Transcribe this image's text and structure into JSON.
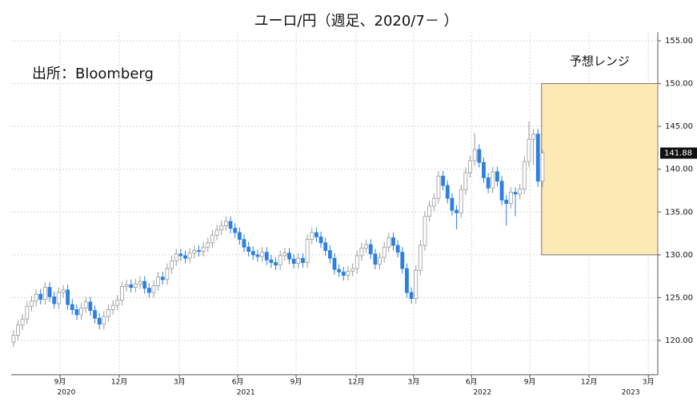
{
  "chart_data": {
    "type": "candlestick",
    "title": "ユーロ/円（週足、2020/7－ ）",
    "source": "出所：Bloomberg",
    "up_color": "#ffffff",
    "up_stroke": "#9a9a9a",
    "down_color": "#2d7fe0",
    "open": [
      119.8,
      120.6,
      121.8,
      122.5,
      124.0,
      124.6,
      125.4,
      124.8,
      126.2,
      125.1,
      124.3,
      125.6,
      125.9,
      124.2,
      123.6,
      123.0,
      123.8,
      124.5,
      123.5,
      122.6,
      121.9,
      122.8,
      123.6,
      124.1,
      124.7,
      126.3,
      126.5,
      126.2,
      126.6,
      126.9,
      126.1,
      125.6,
      126.4,
      127.4,
      127.1,
      128.4,
      129.3,
      130.1,
      129.9,
      129.6,
      130.2,
      130.5,
      130.4,
      130.9,
      131.4,
      132.3,
      132.9,
      133.4,
      133.9,
      133.1,
      132.6,
      131.8,
      130.9,
      130.4,
      130.0,
      129.8,
      130.3,
      129.4,
      129.1,
      128.8,
      129.9,
      130.2,
      129.5,
      129.0,
      129.6,
      129.1,
      131.8,
      132.6,
      132.1,
      131.4,
      130.5,
      129.6,
      128.3,
      128.0,
      127.6,
      128.1,
      128.4,
      129.9,
      130.8,
      131.2,
      130.1,
      128.9,
      129.7,
      130.9,
      132.0,
      131.1,
      130.3,
      128.4,
      125.6,
      124.9,
      128.2,
      131.1,
      134.5,
      135.7,
      136.6,
      139.2,
      138.1,
      136.6,
      135.2,
      134.9,
      137.6,
      139.6,
      141.0,
      142.3,
      140.8,
      139.0,
      137.8,
      139.7,
      138.6,
      136.4,
      136.0,
      137.3,
      137.1,
      137.7,
      140.9,
      143.5,
      144.1,
      138.6
    ],
    "high": [
      121.2,
      122.4,
      123.1,
      124.6,
      125.2,
      126.0,
      126.0,
      126.8,
      126.8,
      125.7,
      126.2,
      126.5,
      126.5,
      124.8,
      124.2,
      124.4,
      125.1,
      125.1,
      124.1,
      123.2,
      123.4,
      124.2,
      124.7,
      125.3,
      126.9,
      127.1,
      127.1,
      127.2,
      127.5,
      127.5,
      126.7,
      127.0,
      128.0,
      128.0,
      129.0,
      129.9,
      130.7,
      130.7,
      130.5,
      130.8,
      131.1,
      131.1,
      131.5,
      132.0,
      132.9,
      133.5,
      134.0,
      134.5,
      134.5,
      133.7,
      133.2,
      132.4,
      131.5,
      131.0,
      130.6,
      130.9,
      130.9,
      130.0,
      129.7,
      130.5,
      130.8,
      130.8,
      130.1,
      130.2,
      130.2,
      132.4,
      133.2,
      133.2,
      132.7,
      132.0,
      131.1,
      130.2,
      128.9,
      128.6,
      128.7,
      129.0,
      130.5,
      131.4,
      131.8,
      131.8,
      130.7,
      130.3,
      131.5,
      132.6,
      132.6,
      131.7,
      130.9,
      129.0,
      126.2,
      128.8,
      131.7,
      135.1,
      136.3,
      137.2,
      139.8,
      139.8,
      138.7,
      137.2,
      135.8,
      138.2,
      140.2,
      141.6,
      144.2,
      142.9,
      141.4,
      139.6,
      140.3,
      140.3,
      139.2,
      137.0,
      137.9,
      137.9,
      138.3,
      141.5,
      145.6,
      144.7,
      144.7,
      142.3
    ],
    "low": [
      119.2,
      120.0,
      121.2,
      121.9,
      123.4,
      124.0,
      124.2,
      124.2,
      124.5,
      123.7,
      123.7,
      125.0,
      123.6,
      123.0,
      122.4,
      122.4,
      123.2,
      122.9,
      122.0,
      121.3,
      121.3,
      122.2,
      123.0,
      123.5,
      124.1,
      125.7,
      125.6,
      125.6,
      126.0,
      125.5,
      125.0,
      125.0,
      125.8,
      126.5,
      126.5,
      127.8,
      128.7,
      129.3,
      129.0,
      129.0,
      129.6,
      129.8,
      129.8,
      130.3,
      130.8,
      131.7,
      132.3,
      132.8,
      132.5,
      132.0,
      131.2,
      130.3,
      129.8,
      129.4,
      129.2,
      129.2,
      128.8,
      128.5,
      128.2,
      128.2,
      129.3,
      128.9,
      128.4,
      128.4,
      128.5,
      128.5,
      131.2,
      131.5,
      130.8,
      129.9,
      129.0,
      127.7,
      127.4,
      127.0,
      127.0,
      127.5,
      127.8,
      129.3,
      130.2,
      129.5,
      128.3,
      128.3,
      129.1,
      130.3,
      130.5,
      129.7,
      127.8,
      125.0,
      124.3,
      124.3,
      127.6,
      130.5,
      133.9,
      135.1,
      136.0,
      137.5,
      136.0,
      134.6,
      133.0,
      134.3,
      137.0,
      139.0,
      140.4,
      140.2,
      138.4,
      137.2,
      137.2,
      138.0,
      135.8,
      133.4,
      135.4,
      134.5,
      136.5,
      137.1,
      140.3,
      140.5,
      137.9,
      137.9
    ],
    "close": [
      120.6,
      121.8,
      122.5,
      124.0,
      124.6,
      125.4,
      124.8,
      126.2,
      125.1,
      124.3,
      125.6,
      125.9,
      124.2,
      123.6,
      123.0,
      123.8,
      124.5,
      123.5,
      122.6,
      121.9,
      122.8,
      123.6,
      124.1,
      124.7,
      126.3,
      126.5,
      126.2,
      126.6,
      126.9,
      126.1,
      125.6,
      126.4,
      127.4,
      127.1,
      128.4,
      129.3,
      130.1,
      129.9,
      129.6,
      130.2,
      130.5,
      130.4,
      130.9,
      131.4,
      132.3,
      132.9,
      133.4,
      133.9,
      133.1,
      132.6,
      131.8,
      130.9,
      130.4,
      130.0,
      129.8,
      130.3,
      129.4,
      129.1,
      128.8,
      129.9,
      130.2,
      129.5,
      129.0,
      129.6,
      129.1,
      131.8,
      132.6,
      132.1,
      131.4,
      130.5,
      129.6,
      128.3,
      128.0,
      127.6,
      128.1,
      128.4,
      129.9,
      130.8,
      131.2,
      130.1,
      128.9,
      129.7,
      130.9,
      132.0,
      131.1,
      130.3,
      128.4,
      125.6,
      124.9,
      128.2,
      131.1,
      134.5,
      135.7,
      136.6,
      139.2,
      138.1,
      136.6,
      135.2,
      134.9,
      137.6,
      139.6,
      141.0,
      142.3,
      140.8,
      139.0,
      137.8,
      139.7,
      138.6,
      136.4,
      136.0,
      137.3,
      137.1,
      137.7,
      140.9,
      143.5,
      144.1,
      138.6,
      141.88
    ],
    "last_value": {
      "value": 141.88,
      "label": "141.88"
    },
    "range": {
      "label": "予想レンジ",
      "low": 130,
      "high": 150,
      "color": "#fde9b4",
      "stroke": "#777777"
    },
    "xlim": [
      0,
      143
    ],
    "xticks": [
      {
        "value": 10.8,
        "label": "9月"
      },
      {
        "value": 23.9,
        "label": "12月"
      },
      {
        "value": 37.2,
        "label": "3月"
      },
      {
        "value": 50.1,
        "label": "6月"
      },
      {
        "value": 63,
        "label": "9月"
      },
      {
        "value": 76.3,
        "label": "12月"
      },
      {
        "value": 89,
        "label": "3月"
      },
      {
        "value": 101.8,
        "label": "6月"
      },
      {
        "value": 114.7,
        "label": "9月"
      },
      {
        "value": 127.8,
        "label": "12月"
      },
      {
        "value": 140.9,
        "label": "3月"
      }
    ],
    "year_labels": [
      {
        "value": 12.2,
        "label": "2020"
      },
      {
        "value": 51.9,
        "label": "2021"
      },
      {
        "value": 104.2,
        "label": "2022"
      },
      {
        "value": 137,
        "label": "2023"
      }
    ],
    "ylim": [
      116,
      156
    ],
    "yticks": [
      {
        "value": 120,
        "label": "120.00"
      },
      {
        "value": 125,
        "label": "125.00"
      },
      {
        "value": 130,
        "label": "130.00"
      },
      {
        "value": 135,
        "label": "135.00"
      },
      {
        "value": 140,
        "label": "140.00"
      },
      {
        "value": 145,
        "label": "145.00"
      },
      {
        "value": 150,
        "label": "150.00"
      },
      {
        "value": 155,
        "label": "155.00"
      }
    ],
    "grid": true
  }
}
